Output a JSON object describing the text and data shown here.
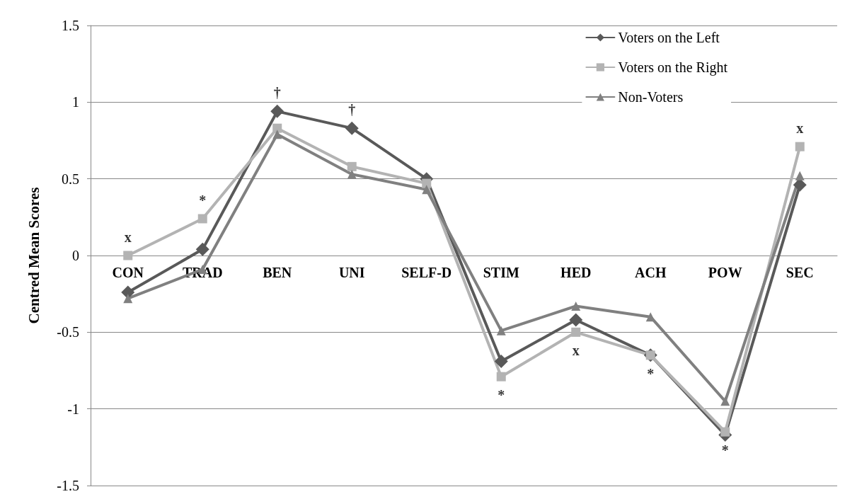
{
  "chart_data": {
    "type": "line",
    "ylabel": "Centred Mean Scores",
    "categories": [
      "CON",
      "TRAD",
      "BEN",
      "UNI",
      "SELF-D",
      "STIM",
      "HED",
      "ACH",
      "POW",
      "SEC"
    ],
    "series": [
      {
        "name": "Voters on the Left",
        "color": "#595959",
        "marker": "diamond",
        "values": [
          -0.24,
          0.04,
          0.94,
          0.83,
          0.5,
          -0.69,
          -0.42,
          -0.65,
          -1.17,
          0.46
        ]
      },
      {
        "name": "Voters on the Right",
        "color": "#b3b3b3",
        "marker": "square",
        "values": [
          0,
          0.24,
          0.83,
          0.58,
          0.47,
          -0.79,
          -0.5,
          -0.65,
          -1.15,
          0.71
        ]
      },
      {
        "name": "Non-Voters",
        "color": "#808080",
        "marker": "triangle",
        "values": [
          -0.28,
          -0.09,
          0.79,
          0.53,
          0.43,
          -0.49,
          -0.33,
          -0.4,
          -0.95,
          0.52
        ]
      }
    ],
    "ylim": [
      -1.5,
      1.5
    ],
    "yticks": [
      -1.5,
      -1,
      -0.5,
      0,
      0.5,
      1,
      1.5
    ],
    "grid": "y",
    "legend": "top right",
    "line_style": "solid",
    "annotations": [
      {
        "text": "x",
        "x": "CON",
        "y": 0
      },
      {
        "text": "*",
        "x": "TRAD",
        "y": 0.24
      },
      {
        "text": "†",
        "x": "BEN",
        "y": 0.94
      },
      {
        "text": "†",
        "x": "UNI",
        "y": 0.83
      },
      {
        "text": "*",
        "x": "STIM",
        "y": -0.79
      },
      {
        "text": "x",
        "x": "HED",
        "y": -0.5
      },
      {
        "text": "*",
        "x": "ACH",
        "y": -0.65
      },
      {
        "text": "*",
        "x": "POW",
        "y": -1.15
      },
      {
        "text": "x",
        "x": "SEC",
        "y": 0.71
      }
    ]
  }
}
